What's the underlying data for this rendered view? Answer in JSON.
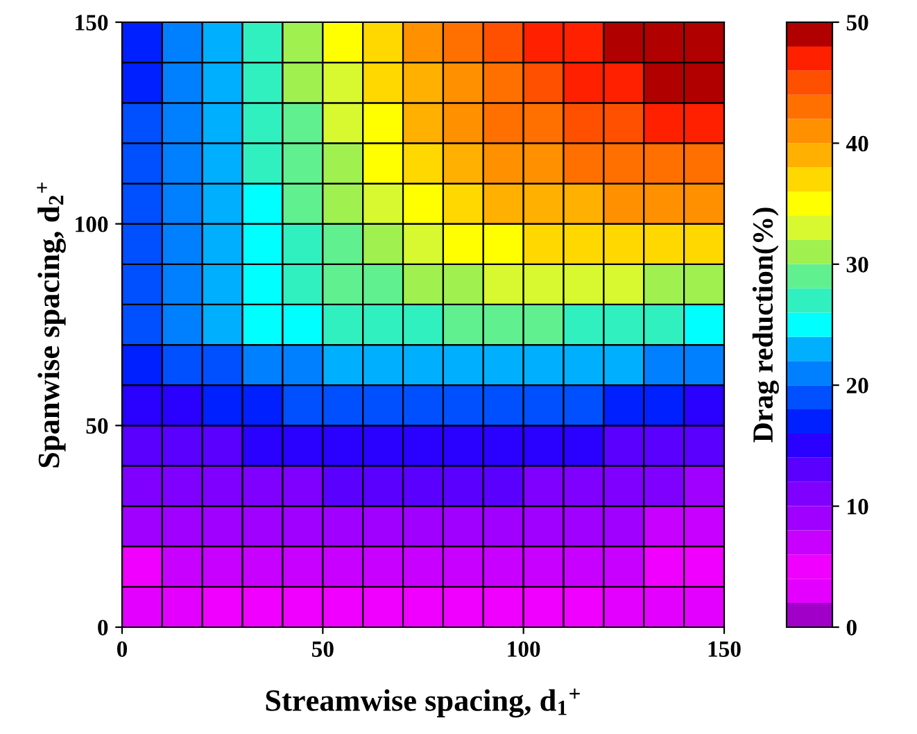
{
  "chart_data": {
    "type": "heatmap",
    "xlabel": "Streamwise spacing, d$_{1}$$^{+}$",
    "ylabel": "Spanwise spacing, d$_{2}$$^{+}$",
    "clabel": "Drag reduction(%)",
    "xlim": [
      0,
      150
    ],
    "ylim": [
      0,
      150
    ],
    "xticks": [
      0,
      50,
      100,
      150
    ],
    "yticks": [
      0,
      50,
      100,
      150
    ],
    "clim": [
      0,
      50
    ],
    "cticks": [
      0,
      10,
      20,
      30,
      40,
      50
    ],
    "cells": [
      [
        16,
        20,
        23,
        26,
        30,
        34,
        37,
        40,
        42,
        44,
        46,
        47,
        48,
        49,
        50
      ],
      [
        17,
        20,
        23,
        26,
        30,
        33,
        36,
        39,
        41,
        43,
        45,
        46,
        47,
        48,
        48
      ],
      [
        18,
        21,
        23,
        26,
        29,
        32,
        35,
        38,
        40,
        42,
        43,
        44,
        45,
        46,
        46
      ],
      [
        18,
        21,
        23,
        26,
        29,
        31,
        34,
        36,
        38,
        40,
        41,
        42,
        43,
        43,
        43
      ],
      [
        19,
        21,
        23,
        25,
        28,
        30,
        33,
        35,
        36,
        38,
        38,
        39,
        40,
        40,
        40
      ],
      [
        19,
        21,
        23,
        25,
        27,
        29,
        31,
        33,
        34,
        35,
        36,
        36,
        36,
        36,
        36
      ],
      [
        19,
        21,
        23,
        25,
        26,
        28,
        29,
        30,
        31,
        32,
        32,
        32,
        32,
        31,
        31
      ],
      [
        18,
        20,
        22,
        24,
        25,
        26,
        27,
        27,
        28,
        28,
        28,
        27,
        27,
        26,
        25
      ],
      [
        16,
        18,
        19,
        20,
        21,
        22,
        23,
        23,
        23,
        23,
        23,
        23,
        22,
        21,
        20
      ],
      [
        14,
        15,
        16,
        17,
        18,
        18,
        19,
        19,
        19,
        19,
        19,
        18,
        17,
        16,
        15
      ],
      [
        12,
        13,
        13,
        14,
        14,
        15,
        15,
        15,
        15,
        15,
        15,
        14,
        13,
        12,
        12
      ],
      [
        10,
        10,
        11,
        11,
        11,
        12,
        12,
        12,
        12,
        12,
        11,
        11,
        10,
        10,
        9
      ],
      [
        8,
        8,
        8,
        8,
        9,
        9,
        9,
        9,
        9,
        9,
        9,
        8,
        8,
        7,
        7
      ],
      [
        5,
        6,
        6,
        6,
        6,
        6,
        6,
        7,
        7,
        6,
        6,
        6,
        6,
        5,
        4
      ],
      [
        2,
        3,
        4,
        4,
        4,
        4,
        4,
        4,
        4,
        4,
        4,
        4,
        3,
        3,
        2
      ]
    ]
  }
}
